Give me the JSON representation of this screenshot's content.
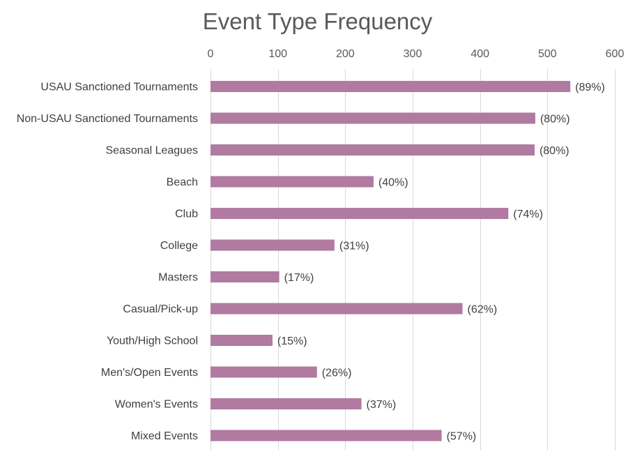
{
  "chart_data": {
    "type": "bar",
    "orientation": "horizontal",
    "title": "Event Type Frequency",
    "xlabel": "",
    "ylabel": "",
    "xlim": [
      0,
      600
    ],
    "x_ticks": [
      0,
      100,
      200,
      300,
      400,
      500,
      600
    ],
    "x_axis_position": "top",
    "grid": true,
    "legend": "none",
    "bar_color": "#b07aa1",
    "categories": [
      "USAU Sanctioned Tournaments",
      "Non-USAU Sanctioned Tournaments",
      "Seasonal Leagues",
      "Beach",
      "Club",
      "College",
      "Masters",
      "Casual/Pick-up",
      "Youth/High School",
      "Men's/Open Events",
      "Women's Events",
      "Mixed Events"
    ],
    "values": [
      534,
      482,
      481,
      242,
      442,
      184,
      102,
      374,
      92,
      158,
      224,
      343
    ],
    "data_labels": [
      "(89%)",
      "(80%)",
      "(80%)",
      "(40%)",
      "(74%)",
      "(31%)",
      "(17%)",
      "(62%)",
      "(15%)",
      "(26%)",
      "(37%)",
      "(57%)"
    ]
  }
}
